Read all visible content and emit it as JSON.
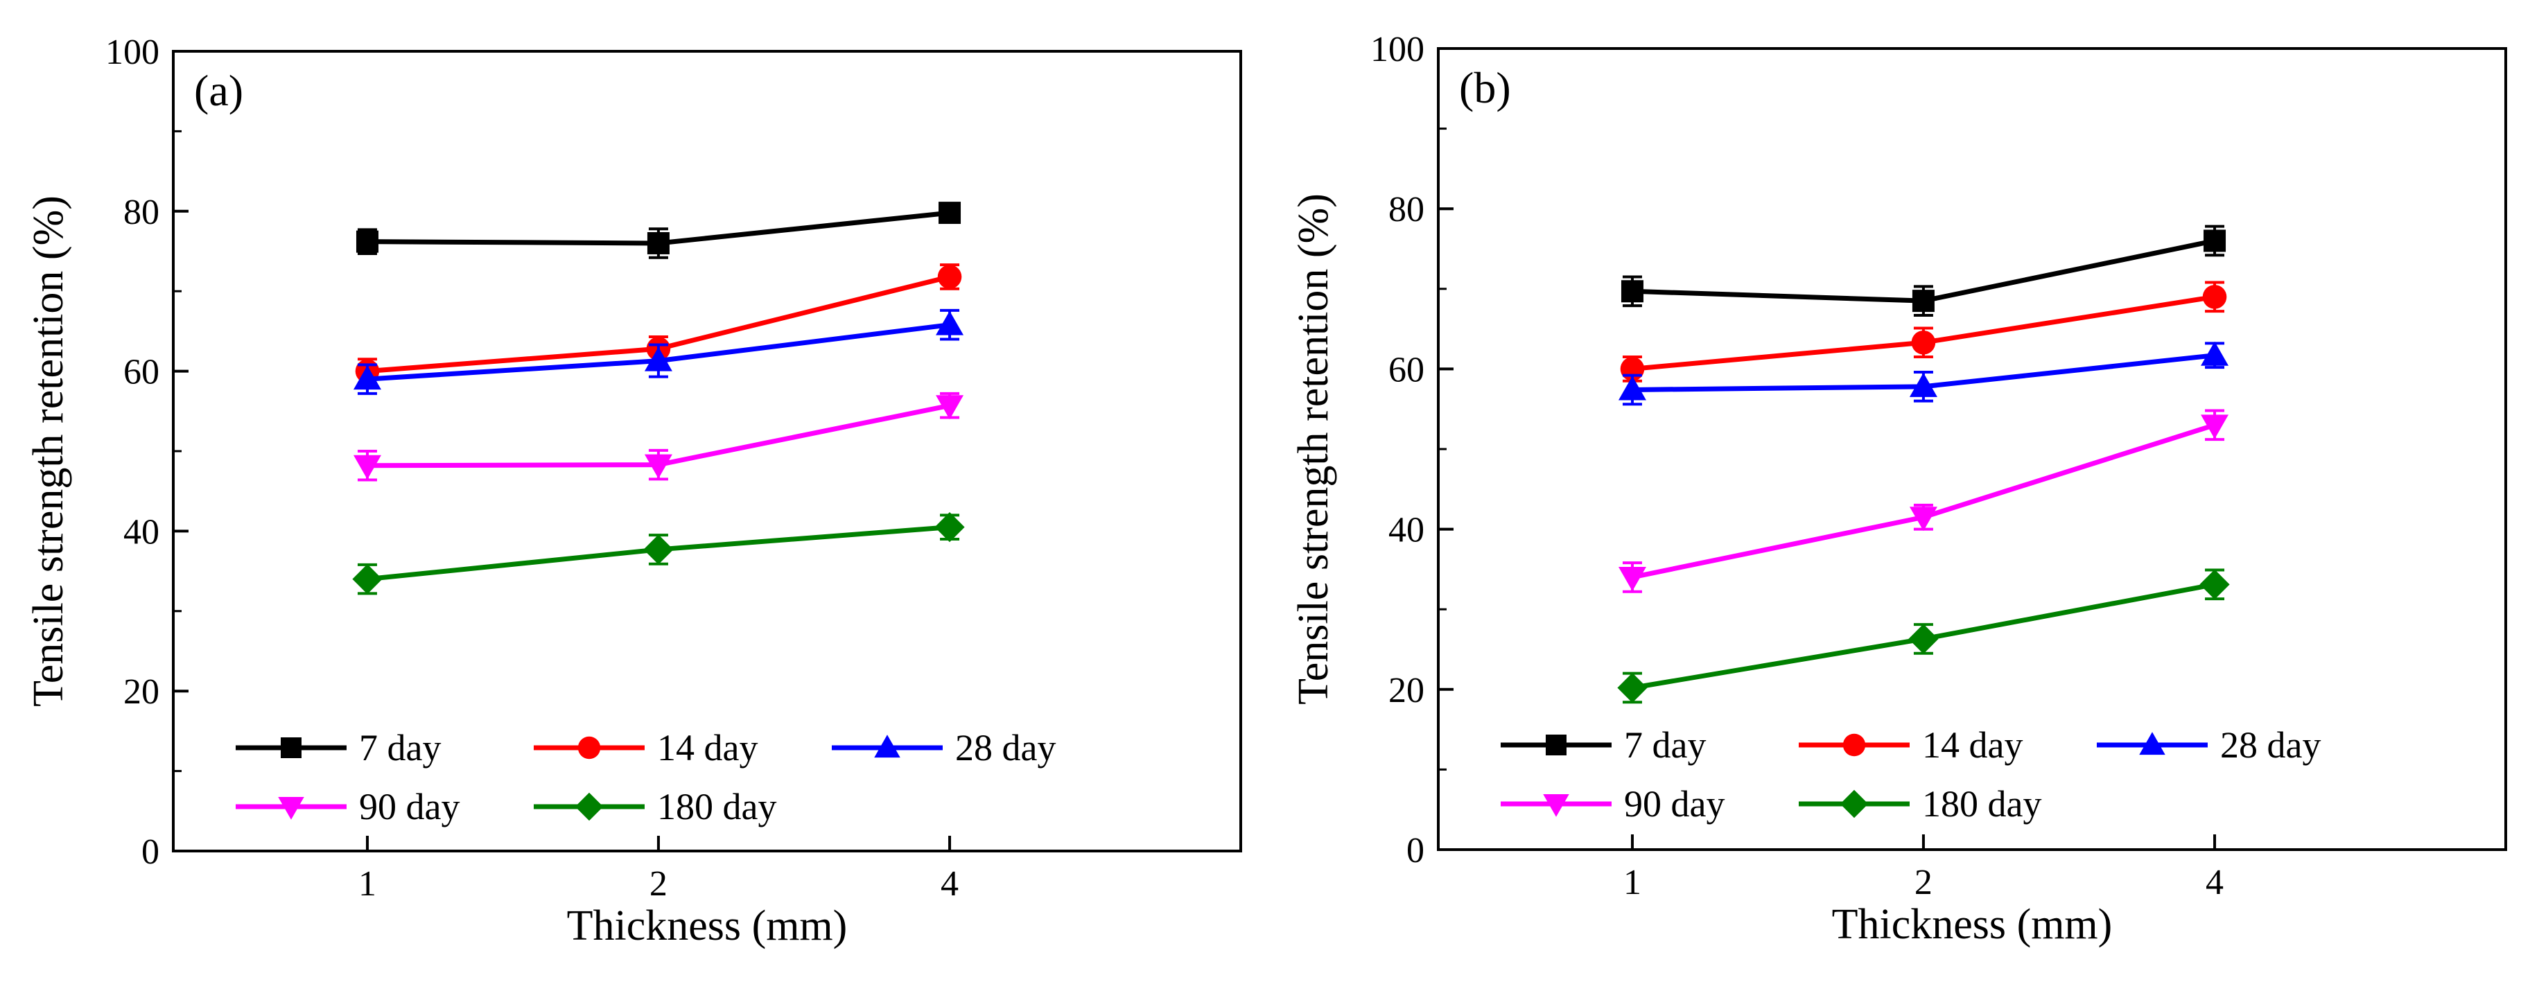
{
  "chart_data": [
    {
      "type": "line",
      "panel_label": "(a)",
      "xlabel": "Thickness (mm)",
      "ylabel": "Tensile strength retention (%)",
      "x": [
        1,
        2,
        4
      ],
      "xticklabels": [
        "1",
        "2",
        "4"
      ],
      "ylim": [
        0,
        100
      ],
      "yticks": [
        0,
        20,
        40,
        60,
        80,
        100
      ],
      "grid": false,
      "legend_position": "bottom-left",
      "series": [
        {
          "name": "7 day",
          "color": "#000000",
          "marker": "square",
          "values": [
            76.2,
            76.0,
            79.8
          ],
          "errors": [
            1.5,
            1.8,
            1.0
          ]
        },
        {
          "name": "14 day",
          "color": "#ff0000",
          "marker": "circle",
          "values": [
            60.0,
            62.8,
            71.8
          ],
          "errors": [
            1.5,
            1.5,
            1.5
          ]
        },
        {
          "name": "28 day",
          "color": "#0000ff",
          "marker": "triangle-up",
          "values": [
            59.0,
            61.3,
            65.8
          ],
          "errors": [
            1.8,
            2.0,
            1.8
          ]
        },
        {
          "name": "90 day",
          "color": "#ff00ff",
          "marker": "triangle-down",
          "values": [
            48.2,
            48.3,
            55.7
          ],
          "errors": [
            1.8,
            1.8,
            1.5
          ]
        },
        {
          "name": "180 day",
          "color": "#008000",
          "marker": "diamond",
          "values": [
            34.0,
            37.7,
            40.5
          ],
          "errors": [
            1.8,
            1.8,
            1.5
          ]
        }
      ]
    },
    {
      "type": "line",
      "panel_label": "(b)",
      "xlabel": "Thickness (mm)",
      "ylabel": "Tensile strength retention (%)",
      "x": [
        1,
        2,
        4
      ],
      "xticklabels": [
        "1",
        "2",
        "4"
      ],
      "ylim": [
        0,
        100
      ],
      "yticks": [
        0,
        20,
        40,
        60,
        80,
        100
      ],
      "grid": false,
      "legend_position": "bottom-left",
      "series": [
        {
          "name": "7 day",
          "color": "#000000",
          "marker": "square",
          "values": [
            69.7,
            68.5,
            76.0
          ],
          "errors": [
            1.8,
            1.8,
            1.8
          ]
        },
        {
          "name": "14 day",
          "color": "#ff0000",
          "marker": "circle",
          "values": [
            60.0,
            63.3,
            69.0
          ],
          "errors": [
            1.5,
            1.8,
            1.8
          ]
        },
        {
          "name": "28 day",
          "color": "#0000ff",
          "marker": "triangle-up",
          "values": [
            57.4,
            57.8,
            61.7
          ],
          "errors": [
            1.8,
            1.8,
            1.5
          ]
        },
        {
          "name": "90 day",
          "color": "#ff00ff",
          "marker": "triangle-down",
          "values": [
            34.0,
            41.5,
            53.0
          ],
          "errors": [
            1.8,
            1.5,
            1.8
          ]
        },
        {
          "name": "180 day",
          "color": "#008000",
          "marker": "diamond",
          "values": [
            20.2,
            26.3,
            33.1
          ],
          "errors": [
            1.8,
            1.8,
            1.8
          ]
        }
      ]
    }
  ]
}
